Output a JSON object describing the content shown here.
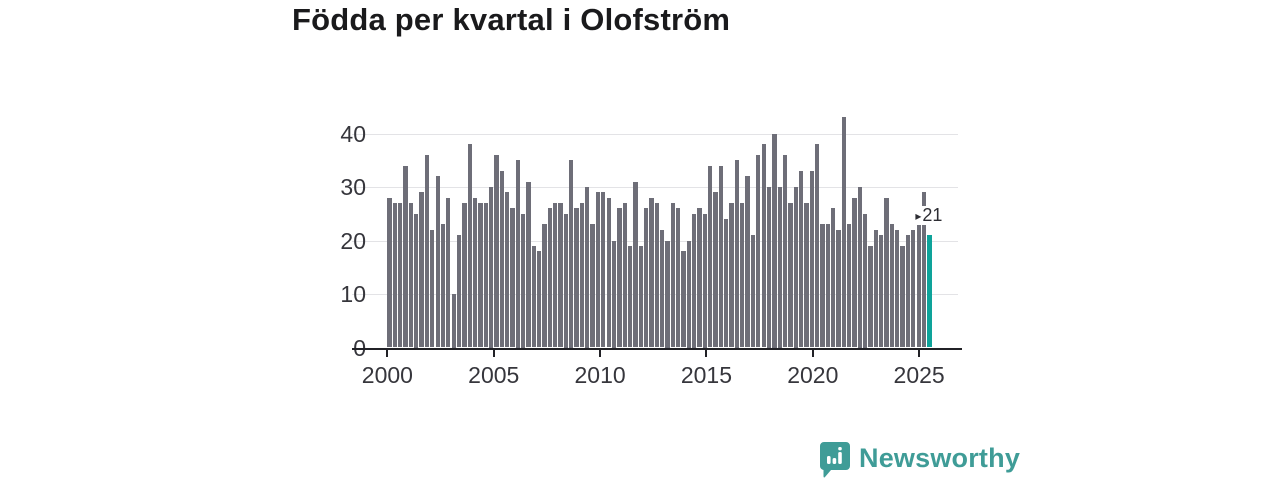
{
  "title": "Födda per kvartal i Olofström",
  "chart_data": {
    "type": "bar",
    "title": "Födda per kvartal i Olofström",
    "x_start": "2000-Q1",
    "x_interval": "quarter",
    "x_end": "2025-Q2",
    "values": [
      28,
      27,
      27,
      34,
      27,
      25,
      29,
      36,
      22,
      32,
      23,
      28,
      10,
      21,
      27,
      38,
      28,
      27,
      27,
      30,
      36,
      33,
      29,
      26,
      35,
      25,
      31,
      19,
      18,
      23,
      26,
      27,
      27,
      25,
      35,
      26,
      27,
      30,
      23,
      29,
      29,
      28,
      20,
      26,
      27,
      19,
      31,
      19,
      26,
      28,
      27,
      22,
      20,
      27,
      26,
      18,
      20,
      25,
      26,
      25,
      34,
      29,
      34,
      24,
      27,
      35,
      27,
      32,
      21,
      36,
      38,
      30,
      40,
      30,
      36,
      27,
      30,
      33,
      27,
      33,
      38,
      23,
      23,
      26,
      22,
      43,
      23,
      28,
      30,
      25,
      19,
      22,
      21,
      28,
      23,
      22,
      19,
      21,
      22,
      23,
      29,
      21
    ],
    "x_tick_labels": [
      "2000",
      "2005",
      "2010",
      "2015",
      "2020",
      "2025"
    ],
    "y_tick_labels": [
      "0",
      "10",
      "20",
      "30",
      "40"
    ],
    "y_ticks": [
      0,
      10,
      20,
      30,
      40
    ],
    "ylim": [
      0,
      45
    ],
    "grid": true,
    "legend": "none",
    "highlight_last_bar": true,
    "last_value_label": "21",
    "colors": {
      "bar": "#6e6e78",
      "highlight": "#0ea39a",
      "grid": "#e3e3e6",
      "axis": "#212126",
      "tick_text": "#36363c",
      "title_text": "#1a1a1c",
      "annotation_text": "#2d2d33"
    }
  },
  "annotation": {
    "arrow_icon": "▸",
    "label": "21"
  },
  "footer": {
    "brand": "Newsworthy",
    "brand_color": "#3f9c97"
  }
}
